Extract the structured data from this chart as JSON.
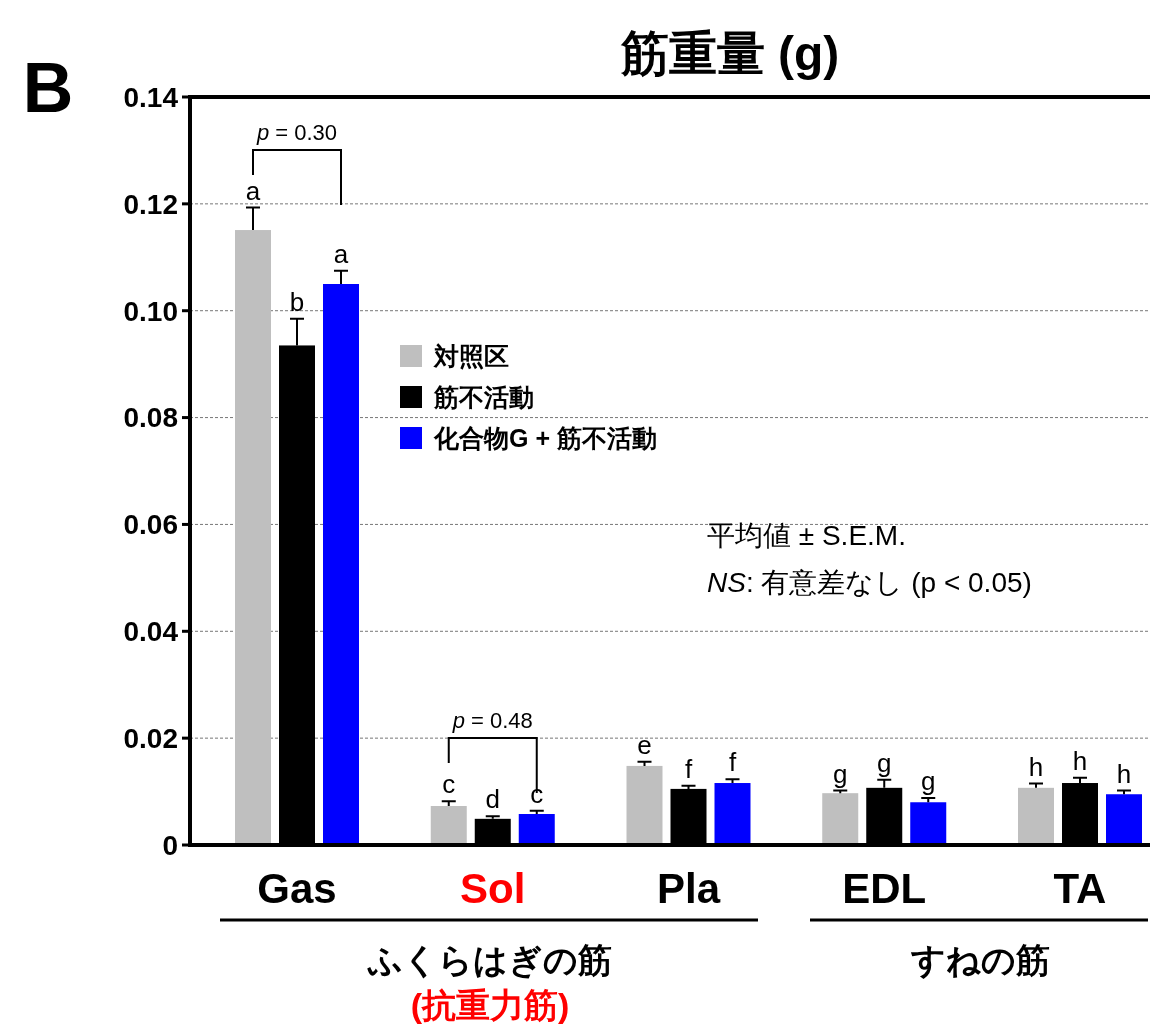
{
  "chart_data": {
    "type": "bar",
    "title": "筋重量 (g)",
    "categories": [
      "Gas",
      "Sol",
      "Pla",
      "EDL",
      "TA"
    ],
    "series": [
      {
        "name": "対照区",
        "color": "#bfbfbf",
        "values": [
          0.1151,
          0.0073,
          0.0148,
          0.0097,
          0.0107
        ],
        "errors": [
          0.0042,
          0.0009,
          0.0008,
          0.0005,
          0.0008
        ],
        "value_labels": [
          "a",
          "c",
          "e",
          "g",
          "h"
        ]
      },
      {
        "name": "筋不活動",
        "color": "#000000",
        "values": [
          0.0935,
          0.0049,
          0.0105,
          0.0107,
          0.0116
        ],
        "errors": [
          0.005,
          0.0005,
          0.0006,
          0.0015,
          0.001
        ],
        "value_labels": [
          "b",
          "d",
          "f",
          "g",
          "h"
        ]
      },
      {
        "name": "化合物G + 筋不活動",
        "color": "#0000ff",
        "values": [
          0.105,
          0.0058,
          0.0116,
          0.008,
          0.0095
        ],
        "errors": [
          0.0025,
          0.0006,
          0.0007,
          0.0008,
          0.0007
        ],
        "value_labels": [
          "a",
          "c",
          "f",
          "g",
          "h"
        ]
      }
    ],
    "ylim": [
      0,
      0.14
    ],
    "yticks": [
      0,
      0.02,
      0.04,
      0.06,
      0.08,
      {
        "value": 0.1,
        "label": "0.10"
      },
      0.12,
      0.14
    ],
    "grid": "y",
    "legend": "top",
    "annotations": [
      "B",
      "p = 0.30",
      "p = 0.48",
      "平均値 ± S.E.M.",
      "NS: 有意差なし (p < 0.05)",
      "ふくらはぎの筋",
      "(抗重力筋)",
      "すねの筋"
    ]
  }
}
